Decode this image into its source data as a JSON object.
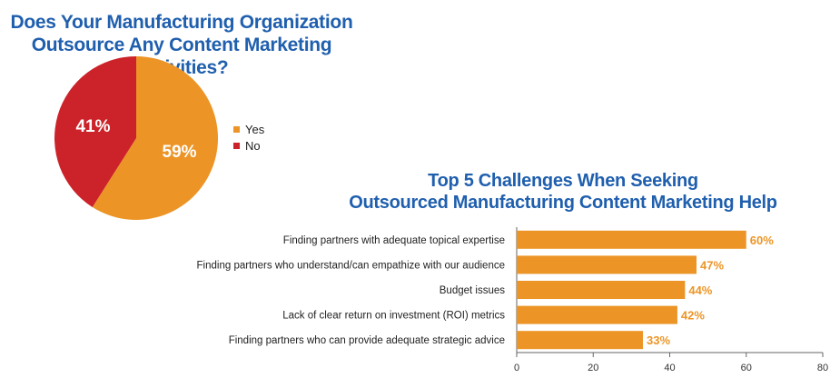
{
  "chart_data": [
    {
      "type": "pie",
      "title": "Does Your Manufacturing Organization\nOutsource Any Content Marketing Activities?",
      "slices": [
        {
          "label": "Yes",
          "value": 59,
          "display": "59%",
          "color": "#ec9526"
        },
        {
          "label": "No",
          "value": 41,
          "display": "41%",
          "color": "#cc2229"
        }
      ],
      "legend_position": "right"
    },
    {
      "type": "bar",
      "orientation": "horizontal",
      "title": "Top 5 Challenges When Seeking\nOutsourced Manufacturing Content Marketing Help",
      "categories": [
        "Finding partners with adequate topical expertise",
        "Finding partners who understand/can empathize with our audience",
        "Budget issues",
        "Lack of clear return on investment (ROI) metrics",
        "Finding partners who can provide adequate strategic advice"
      ],
      "values": [
        60,
        47,
        44,
        42,
        33
      ],
      "value_labels": [
        "60%",
        "47%",
        "44%",
        "42%",
        "33%"
      ],
      "xlim": [
        0,
        80
      ],
      "xticks": [
        0,
        20,
        40,
        60,
        80
      ],
      "bar_color": "#ec9526",
      "label_color": "#ec9526",
      "grid": false
    }
  ]
}
